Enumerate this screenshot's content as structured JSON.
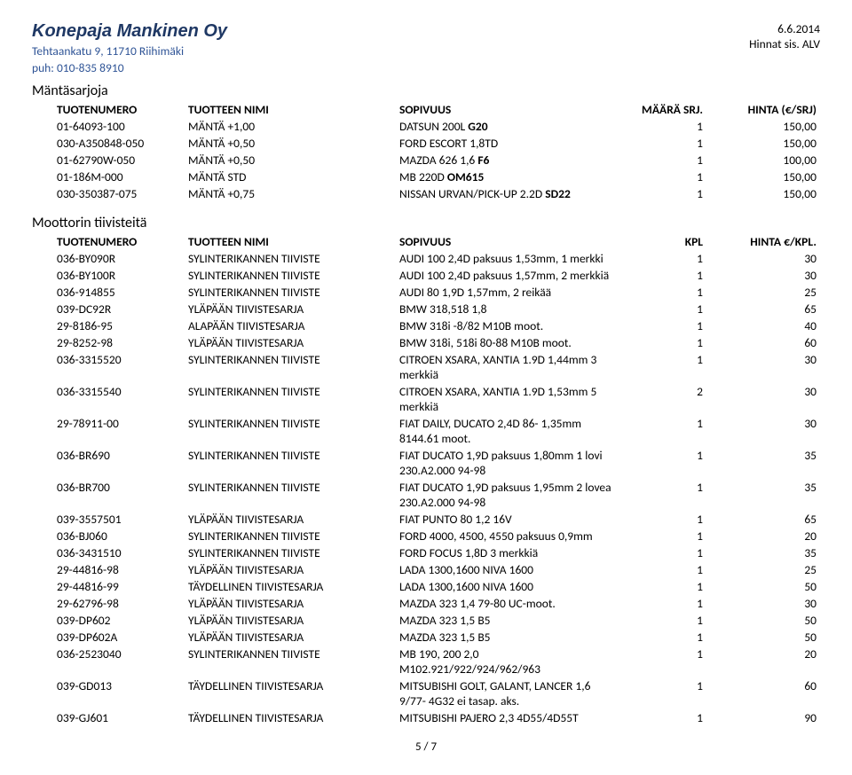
{
  "header": {
    "company": "Konepaja Mankinen Oy",
    "address": "Tehtaankatu 9, 11710 Riihimäki",
    "phone": "puh: 010-835 8910",
    "date": "6.6.2014",
    "vat_note": "Hinnat sis. ALV"
  },
  "section1": {
    "title": "Mäntäsarjoja",
    "head": {
      "c1": "TUOTENUMERO",
      "c2": "TUOTTEEN NIMI",
      "c3": "SOPIVUUS",
      "c4": "MÄÄRÄ SRJ.",
      "c5": "HINTA (€/SRJ)"
    },
    "rows": [
      {
        "n": "01-64093-100",
        "name": "MÄNTÄ +1,00",
        "fit_pre": "DATSUN 200L ",
        "fit_b": "G20",
        "fit_post": "",
        "q": "1",
        "p": "150,00"
      },
      {
        "n": "030-A350848-050",
        "name": "MÄNTÄ +0,50",
        "fit_pre": "FORD ESCORT 1,8TD",
        "fit_b": "",
        "fit_post": "",
        "q": "1",
        "p": "150,00"
      },
      {
        "n": "01-62790W-050",
        "name": "MÄNTÄ +0,50",
        "fit_pre": "MAZDA 626 1,6 ",
        "fit_b": "F6",
        "fit_post": "",
        "q": "1",
        "p": "100,00"
      },
      {
        "n": "01-186M-000",
        "name": "MÄNTÄ STD",
        "fit_pre": "MB 220D ",
        "fit_b": "OM615",
        "fit_post": "",
        "q": "1",
        "p": "150,00"
      },
      {
        "n": "030-350387-075",
        "name": "MÄNTÄ +0,75",
        "fit_pre": "NISSAN URVAN/PICK-UP 2.2D ",
        "fit_b": "SD22",
        "fit_post": "",
        "q": "1",
        "p": "150,00"
      }
    ]
  },
  "section2": {
    "title": "Moottorin tiivisteitä",
    "head": {
      "c1": "TUOTENUMERO",
      "c2": "TUOTTEEN NIMI",
      "c3": "SOPIVUUS",
      "c4": "KPL",
      "c5": "HINTA €/KPL."
    },
    "rows": [
      {
        "n": "036-BY090R",
        "name": "SYLINTERIKANNEN TIIVISTE",
        "fit": "AUDI 100 2,4D   paksuus 1,53mm, 1 merkki",
        "q": "1",
        "p": "30"
      },
      {
        "n": "036-BY100R",
        "name": "SYLINTERIKANNEN TIIVISTE",
        "fit": "AUDI 100 2,4D   paksuus 1,57mm, 2 merkkiä",
        "q": "1",
        "p": "30"
      },
      {
        "n": "036-914855",
        "name": "SYLINTERIKANNEN TIIVISTE",
        "fit": "AUDI 80 1,9D    1,57mm, 2 reikää",
        "q": "1",
        "p": "25"
      },
      {
        "n": "039-DC92R",
        "name": "YLÄPÄÄN TIIVISTESARJA",
        "fit": "BMW 318,518 1,8",
        "q": "1",
        "p": "65"
      },
      {
        "n": "29-8186-95",
        "name": "ALAPÄÄN TIIVISTESARJA",
        "fit": "BMW 318i -8/82 M10B moot.",
        "q": "1",
        "p": "40"
      },
      {
        "n": "29-8252-98",
        "name": "YLÄPÄÄN TIIVISTESARJA",
        "fit": "BMW 318i, 518i 80-88 M10B moot.",
        "q": "1",
        "p": "60"
      },
      {
        "n": "036-3315520",
        "name": "SYLINTERIKANNEN TIIVISTE",
        "fit": "CITROEN XSARA, XANTIA 1.9D 1,44mm 3 merkkiä",
        "q": "1",
        "p": "30"
      },
      {
        "n": "036-3315540",
        "name": "SYLINTERIKANNEN TIIVISTE",
        "fit": "CITROEN XSARA, XANTIA 1.9D 1,53mm 5 merkkiä",
        "q": "2",
        "p": "30"
      },
      {
        "n": "29-78911-00",
        "name": "SYLINTERIKANNEN TIIVISTE",
        "fit": "FIAT DAILY, DUCATO 2,4D 86- 1,35mm 8144.61 moot.",
        "q": "1",
        "p": "30"
      },
      {
        "n": "036-BR690",
        "name": "SYLINTERIKANNEN TIIVISTE",
        "fit": "FIAT DUCATO 1,9D   paksuus 1,80mm 1 lovi 230.A2.000 94-98",
        "q": "1",
        "p": "35"
      },
      {
        "n": "036-BR700",
        "name": "SYLINTERIKANNEN TIIVISTE",
        "fit": "FIAT DUCATO 1,9D   paksuus 1,95mm 2 lovea 230.A2.000 94-98",
        "q": "1",
        "p": "35"
      },
      {
        "n": "039-3557501",
        "name": "YLÄPÄÄN TIIVISTESARJA",
        "fit": "FIAT PUNTO 80 1,2 16V",
        "q": "1",
        "p": "65"
      },
      {
        "n": "036-BJ060",
        "name": "SYLINTERIKANNEN TIIVISTE",
        "fit": "FORD 4000, 4500, 4550   paksuus 0,9mm",
        "q": "1",
        "p": "20"
      },
      {
        "n": "036-3431510",
        "name": "SYLINTERIKANNEN TIIVISTE",
        "fit": "FORD FOCUS 1,8D   3 merkkiä",
        "q": "1",
        "p": "35"
      },
      {
        "n": "29-44816-98",
        "name": "YLÄPÄÄN TIIVISTESARJA",
        "fit": "LADA 1300,1600 NIVA 1600",
        "q": "1",
        "p": "25"
      },
      {
        "n": "29-44816-99",
        "name": "TÄYDELLINEN TIIVISTESARJA",
        "fit": "LADA 1300,1600 NIVA 1600",
        "q": "1",
        "p": "50"
      },
      {
        "n": "29-62796-98",
        "name": "YLÄPÄÄN TIIVISTESARJA",
        "fit": "MAZDA 323 1,4 79-80 UC-moot.",
        "q": "1",
        "p": "30"
      },
      {
        "n": "039-DP602",
        "name": "YLÄPÄÄN TIIVISTESARJA",
        "fit": "MAZDA 323 1,5 B5",
        "q": "1",
        "p": "50"
      },
      {
        "n": "039-DP602A",
        "name": "YLÄPÄÄN TIIVISTESARJA",
        "fit": "MAZDA 323 1,5 B5",
        "q": "1",
        "p": "50"
      },
      {
        "n": "036-2523040",
        "name": "SYLINTERIKANNEN TIIVISTE",
        "fit": "MB 190, 200 2,0   M102.921/922/924/962/963",
        "q": "1",
        "p": "20"
      },
      {
        "n": "039-GD013",
        "name": "TÄYDELLINEN TIIVISTESARJA",
        "fit": "MITSUBISHI GOLT, GALANT, LANCER 1,6   9/77- 4G32 ei tasap. aks.",
        "q": "1",
        "p": "60"
      },
      {
        "n": "039-GJ601",
        "name": "TÄYDELLINEN TIIVISTESARJA",
        "fit": "MITSUBISHI PAJERO 2,3 4D55/4D55T",
        "q": "1",
        "p": "90"
      }
    ]
  },
  "pagefoot": "5 / 7"
}
